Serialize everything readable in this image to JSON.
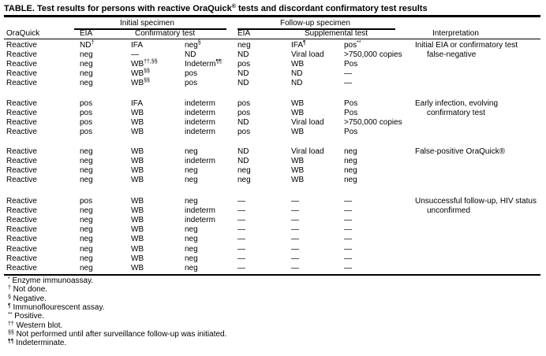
{
  "title": "TABLE. Test results for persons with reactive OraQuick",
  "title_sup": "®",
  "title_rest": " tests and discordant confirmatory test results",
  "group_headers": {
    "initial": "Initial specimen",
    "followup": "Follow-up specimen"
  },
  "columns": [
    {
      "label": "OraQuick"
    },
    {
      "label": "EIA",
      "sup": "*"
    },
    {
      "label": "Confirmatory test"
    },
    {
      "label": "EIA"
    },
    {
      "label": "Supplemental test"
    },
    {
      "label": "Interpretation"
    }
  ],
  "groups": [
    {
      "interpretation": [
        "Initial EIA or confirmatory test",
        "false-negative"
      ],
      "rows": [
        [
          [
            "Reactive"
          ],
          [
            "ND",
            "†"
          ],
          [
            "IFA"
          ],
          [
            "neg",
            "§"
          ],
          [
            "neg"
          ],
          [
            "IFA",
            "¶"
          ],
          [
            "pos",
            "**"
          ]
        ],
        [
          [
            "Reactive"
          ],
          [
            "neg"
          ],
          [
            "—"
          ],
          [
            "ND"
          ],
          [
            "ND"
          ],
          [
            "Viral load"
          ],
          [
            ">750,000 copies"
          ]
        ],
        [
          [
            "Reactive"
          ],
          [
            "neg"
          ],
          [
            "WB",
            "††,§§"
          ],
          [
            "Indeterm",
            "¶¶"
          ],
          [
            "pos"
          ],
          [
            "WB"
          ],
          [
            "Pos"
          ]
        ],
        [
          [
            "Reactive"
          ],
          [
            "neg"
          ],
          [
            "WB",
            "§§"
          ],
          [
            "pos"
          ],
          [
            "ND"
          ],
          [
            "ND"
          ],
          [
            "—"
          ]
        ],
        [
          [
            "Reactive"
          ],
          [
            "neg"
          ],
          [
            "WB",
            "§§"
          ],
          [
            "pos"
          ],
          [
            "ND"
          ],
          [
            "ND"
          ],
          [
            "—"
          ]
        ]
      ]
    },
    {
      "interpretation": [
        "Early infection, evolving",
        "confirmatory test"
      ],
      "rows": [
        [
          [
            "Reactive"
          ],
          [
            "pos"
          ],
          [
            "IFA"
          ],
          [
            "indeterm"
          ],
          [
            "pos"
          ],
          [
            "WB"
          ],
          [
            "Pos"
          ]
        ],
        [
          [
            "Reactive"
          ],
          [
            "pos"
          ],
          [
            "WB"
          ],
          [
            "indeterm"
          ],
          [
            "pos"
          ],
          [
            "WB"
          ],
          [
            "Pos"
          ]
        ],
        [
          [
            "Reactive"
          ],
          [
            "pos"
          ],
          [
            "WB"
          ],
          [
            "indeterm"
          ],
          [
            "ND"
          ],
          [
            "Viral load"
          ],
          [
            ">750,000 copies"
          ]
        ],
        [
          [
            "Reactive"
          ],
          [
            "pos"
          ],
          [
            "WB"
          ],
          [
            "indeterm"
          ],
          [
            "pos"
          ],
          [
            "WB"
          ],
          [
            "Pos"
          ]
        ]
      ]
    },
    {
      "interpretation": [
        "False-positive OraQuick®"
      ],
      "rows": [
        [
          [
            "Reactive"
          ],
          [
            "neg"
          ],
          [
            "WB"
          ],
          [
            "neg"
          ],
          [
            "ND"
          ],
          [
            "Viral load"
          ],
          [
            "neg"
          ]
        ],
        [
          [
            "Reactive"
          ],
          [
            "neg"
          ],
          [
            "WB"
          ],
          [
            "indeterm"
          ],
          [
            "ND"
          ],
          [
            "WB"
          ],
          [
            "neg"
          ]
        ],
        [
          [
            "Reactive"
          ],
          [
            "neg"
          ],
          [
            "WB"
          ],
          [
            "neg"
          ],
          [
            "neg"
          ],
          [
            "WB"
          ],
          [
            "neg"
          ]
        ],
        [
          [
            "Reactive"
          ],
          [
            "neg"
          ],
          [
            "WB"
          ],
          [
            "neg"
          ],
          [
            "neg"
          ],
          [
            "WB"
          ],
          [
            "neg"
          ]
        ]
      ]
    },
    {
      "interpretation": [
        "Unsuccessful follow-up, HIV status",
        "unconfirmed"
      ],
      "rows": [
        [
          [
            "Reactive"
          ],
          [
            "pos"
          ],
          [
            "WB"
          ],
          [
            "neg"
          ],
          [
            "—"
          ],
          [
            "—"
          ],
          [
            "—"
          ]
        ],
        [
          [
            "Reactive"
          ],
          [
            "neg"
          ],
          [
            "WB"
          ],
          [
            "indeterm"
          ],
          [
            "—"
          ],
          [
            "—"
          ],
          [
            "—"
          ]
        ],
        [
          [
            "Reactive"
          ],
          [
            "neg"
          ],
          [
            "WB"
          ],
          [
            "indeterm"
          ],
          [
            "—"
          ],
          [
            "—"
          ],
          [
            "—"
          ]
        ],
        [
          [
            "Reactive"
          ],
          [
            "neg"
          ],
          [
            "WB"
          ],
          [
            "neg"
          ],
          [
            "—"
          ],
          [
            "—"
          ],
          [
            "—"
          ]
        ],
        [
          [
            "Reactive"
          ],
          [
            "neg"
          ],
          [
            "WB"
          ],
          [
            "neg"
          ],
          [
            "—"
          ],
          [
            "—"
          ],
          [
            "—"
          ]
        ],
        [
          [
            "Reactive"
          ],
          [
            "neg"
          ],
          [
            "WB"
          ],
          [
            "neg"
          ],
          [
            "—"
          ],
          [
            "—"
          ],
          [
            "—"
          ]
        ],
        [
          [
            "Reactive"
          ],
          [
            "neg"
          ],
          [
            "WB"
          ],
          [
            "neg"
          ],
          [
            "—"
          ],
          [
            "—"
          ],
          [
            "—"
          ]
        ],
        [
          [
            "Reactive"
          ],
          [
            "neg"
          ],
          [
            "WB"
          ],
          [
            "neg"
          ],
          [
            "—"
          ],
          [
            "—"
          ],
          [
            "—"
          ]
        ]
      ]
    }
  ],
  "footnotes": [
    {
      "mark": "*",
      "text": "Enzyme immunoassay."
    },
    {
      "mark": "†",
      "text": "Not done."
    },
    {
      "mark": "§",
      "text": "Negative."
    },
    {
      "mark": "¶",
      "text": "Immunoflourescent assay."
    },
    {
      "mark": "**",
      "text": "Positive."
    },
    {
      "mark": "††",
      "text": "Western blot."
    },
    {
      "mark": "§§",
      "text": "Not performed until after surveillance follow-up was initiated."
    },
    {
      "mark": "¶¶",
      "text": "Indeterminate."
    }
  ]
}
